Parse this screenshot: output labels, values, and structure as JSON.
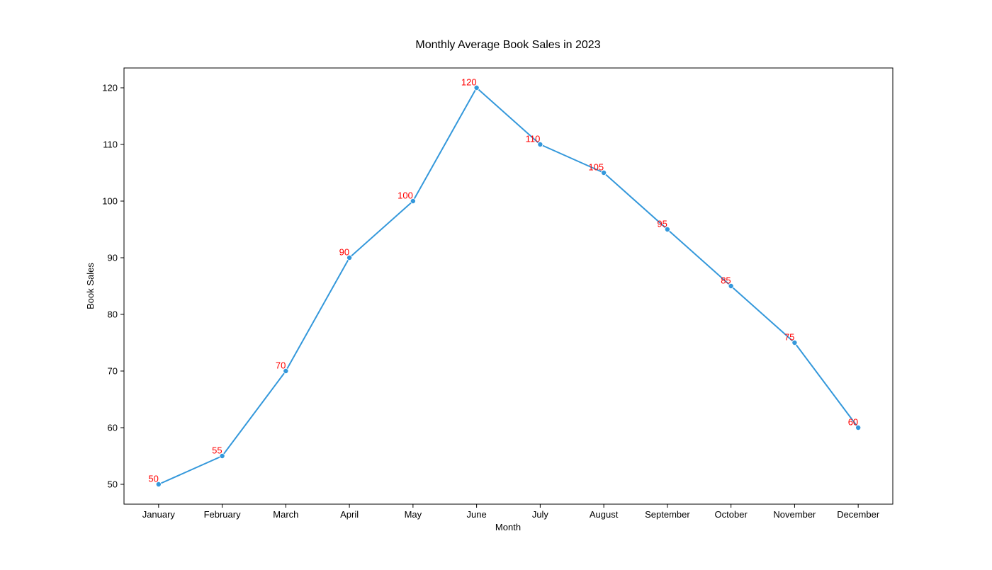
{
  "chart_data": {
    "type": "line",
    "title": "Monthly Average Book Sales in 2023",
    "xlabel": "Month",
    "ylabel": "Book Sales",
    "categories": [
      "January",
      "February",
      "March",
      "April",
      "May",
      "June",
      "July",
      "August",
      "September",
      "October",
      "November",
      "December"
    ],
    "series": [
      {
        "values": [
          50,
          55,
          70,
          90,
          100,
          120,
          110,
          105,
          95,
          85,
          75,
          60
        ],
        "color": "#3498db",
        "marker": "circle"
      }
    ],
    "data_label_color": "#ff0000",
    "ylim": [
      46.5,
      123.5
    ],
    "yticks": [
      50,
      60,
      70,
      80,
      90,
      100,
      110,
      120
    ],
    "grid": false,
    "legend": "none"
  }
}
